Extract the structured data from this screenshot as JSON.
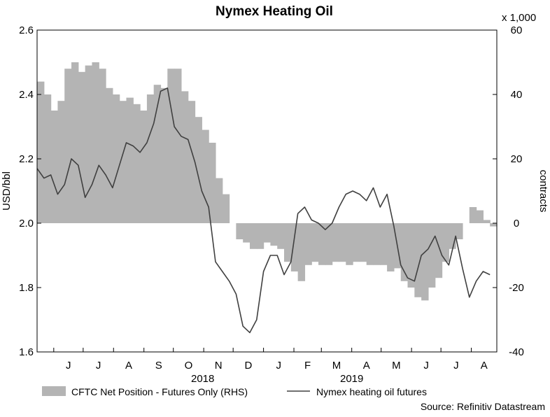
{
  "chart_data": {
    "type": "line",
    "title": "Nymex Heating Oil",
    "left_axis": {
      "label": "USD/bbl",
      "ylim": [
        1.6,
        2.6
      ],
      "ticks": [
        "1.6",
        "1.8",
        "2.0",
        "2.2",
        "2.4",
        "2.6"
      ]
    },
    "right_axis": {
      "label": "contracts",
      "unit_note": "x 1,000",
      "ylim": [
        -40,
        60
      ],
      "ticks": [
        "-40",
        "-20",
        "0",
        "20",
        "40",
        "60"
      ]
    },
    "x_axis": {
      "month_labels": [
        "J",
        "J",
        "A",
        "S",
        "O",
        "N",
        "D",
        "J",
        "F",
        "M",
        "A",
        "M",
        "J",
        "J",
        "A"
      ],
      "year_labels": [
        "2018",
        "2019"
      ]
    },
    "legend_placement": "bottom",
    "source": "Source: Refinitiv Datastream",
    "series": [
      {
        "name": "CFTC Net Position - Futures Only (RHS)",
        "type": "area",
        "axis": "right",
        "color": "#b4b4b4",
        "x": [
          "2018-05-15",
          "2018-05-22",
          "2018-05-29",
          "2018-06-05",
          "2018-06-12",
          "2018-06-19",
          "2018-06-26",
          "2018-07-03",
          "2018-07-10",
          "2018-07-17",
          "2018-07-24",
          "2018-07-31",
          "2018-08-07",
          "2018-08-14",
          "2018-08-21",
          "2018-08-28",
          "2018-09-04",
          "2018-09-11",
          "2018-09-18",
          "2018-09-25",
          "2018-10-02",
          "2018-10-09",
          "2018-10-16",
          "2018-10-23",
          "2018-10-30",
          "2018-11-06",
          "2018-11-13",
          "2018-11-20",
          "2018-11-27",
          "2018-12-04",
          "2018-12-11",
          "2018-12-18",
          "2018-12-25",
          "2019-01-01",
          "2019-01-08",
          "2019-01-15",
          "2019-01-22",
          "2019-01-29",
          "2019-02-05",
          "2019-02-12",
          "2019-02-19",
          "2019-02-26",
          "2019-03-05",
          "2019-03-12",
          "2019-03-19",
          "2019-03-26",
          "2019-04-02",
          "2019-04-09",
          "2019-04-16",
          "2019-04-23",
          "2019-04-30",
          "2019-05-07",
          "2019-05-14",
          "2019-05-21",
          "2019-05-28",
          "2019-06-04",
          "2019-06-11",
          "2019-06-18",
          "2019-06-25",
          "2019-07-02",
          "2019-07-09",
          "2019-07-16",
          "2019-07-23",
          "2019-07-30",
          "2019-08-06",
          "2019-08-13",
          "2019-08-20"
        ],
        "values": [
          44,
          40,
          35,
          38,
          48,
          50,
          47,
          49,
          50,
          48,
          42,
          40,
          38,
          39,
          37,
          35,
          40,
          43,
          42,
          48,
          48,
          41,
          38,
          33,
          29,
          25,
          14,
          9,
          0,
          -5,
          -6,
          -8,
          -8,
          -6,
          -7,
          -8,
          -12,
          -15,
          -18,
          -13,
          -12,
          -13,
          -13,
          -12,
          -12,
          -13,
          -12,
          -12,
          -13,
          -13,
          -13,
          -15,
          -14,
          -18,
          -20,
          -23,
          -24,
          -20,
          -17,
          -12,
          -8,
          -5,
          0,
          5,
          4,
          1,
          -1
        ]
      },
      {
        "name": "Nymex heating oil futures",
        "type": "line",
        "axis": "left",
        "color": "#404040",
        "x": [
          "2018-05-15",
          "2018-05-22",
          "2018-05-29",
          "2018-06-05",
          "2018-06-12",
          "2018-06-19",
          "2018-06-26",
          "2018-07-03",
          "2018-07-10",
          "2018-07-17",
          "2018-07-24",
          "2018-07-31",
          "2018-08-07",
          "2018-08-14",
          "2018-08-21",
          "2018-08-28",
          "2018-09-04",
          "2018-09-11",
          "2018-09-18",
          "2018-09-25",
          "2018-10-02",
          "2018-10-09",
          "2018-10-16",
          "2018-10-23",
          "2018-10-30",
          "2018-11-06",
          "2018-11-13",
          "2018-11-20",
          "2018-11-27",
          "2018-12-04",
          "2018-12-11",
          "2018-12-18",
          "2018-12-25",
          "2019-01-01",
          "2019-01-08",
          "2019-01-15",
          "2019-01-22",
          "2019-01-29",
          "2019-02-05",
          "2019-02-12",
          "2019-02-19",
          "2019-02-26",
          "2019-03-05",
          "2019-03-12",
          "2019-03-19",
          "2019-03-26",
          "2019-04-02",
          "2019-04-09",
          "2019-04-16",
          "2019-04-23",
          "2019-04-30",
          "2019-05-07",
          "2019-05-14",
          "2019-05-21",
          "2019-05-28",
          "2019-06-04",
          "2019-06-11",
          "2019-06-18",
          "2019-06-25",
          "2019-07-02",
          "2019-07-09",
          "2019-07-16",
          "2019-07-23",
          "2019-07-30",
          "2019-08-06",
          "2019-08-13",
          "2019-08-20"
        ],
        "values": [
          2.17,
          2.14,
          2.15,
          2.09,
          2.12,
          2.2,
          2.18,
          2.08,
          2.12,
          2.18,
          2.15,
          2.11,
          2.18,
          2.25,
          2.24,
          2.22,
          2.25,
          2.31,
          2.41,
          2.42,
          2.3,
          2.27,
          2.26,
          2.19,
          2.1,
          2.05,
          1.88,
          1.85,
          1.82,
          1.78,
          1.68,
          1.66,
          1.7,
          1.85,
          1.9,
          1.9,
          1.84,
          1.88,
          2.03,
          2.05,
          2.01,
          2.0,
          1.98,
          2.0,
          2.05,
          2.09,
          2.1,
          2.09,
          2.07,
          2.11,
          2.05,
          2.09,
          1.99,
          1.87,
          1.83,
          1.82,
          1.9,
          1.92,
          1.96,
          1.9,
          1.87,
          1.96,
          1.86,
          1.77,
          1.82,
          1.85,
          1.84
        ]
      }
    ]
  }
}
